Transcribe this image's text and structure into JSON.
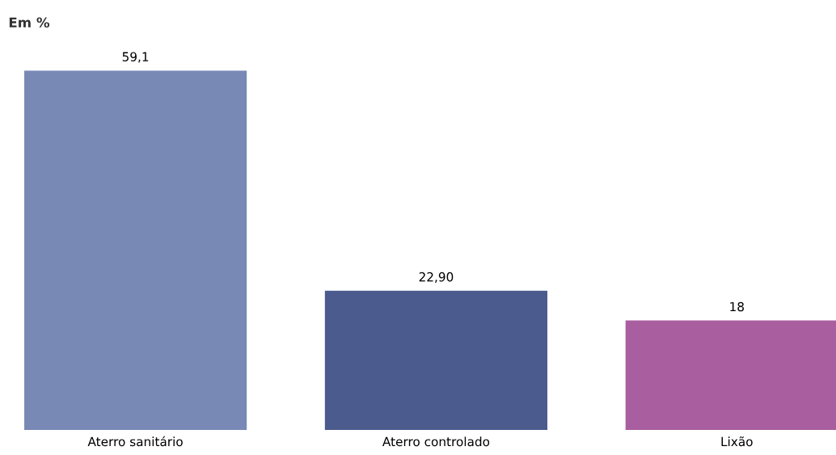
{
  "chart_data": {
    "type": "bar",
    "title": "Em %",
    "categories": [
      "Aterro sanitário",
      "Aterro controlado",
      "Lixão"
    ],
    "values": [
      59.1,
      22.9,
      18
    ],
    "value_labels": [
      "59,1",
      "22,90",
      "18"
    ],
    "colors": [
      "#7889b5",
      "#4b5b8e",
      "#a95ea0"
    ],
    "grid": false,
    "legend": false
  }
}
